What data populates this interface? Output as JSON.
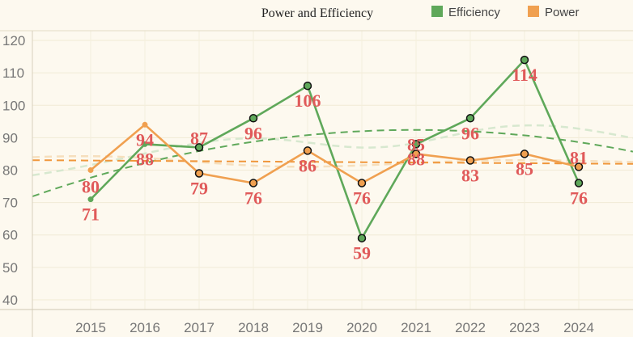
{
  "chart_data": {
    "type": "line",
    "title": "Power and Efficiency",
    "xlabel": "",
    "ylabel": "",
    "categories": [
      "2015",
      "2016",
      "2017",
      "2018",
      "2019",
      "2020",
      "2021",
      "2022",
      "2023",
      "2024"
    ],
    "series": [
      {
        "name": "Efficiency",
        "color": "#5fa85a",
        "values": [
          71,
          88,
          87,
          96,
          106,
          59,
          88,
          96,
          114,
          76
        ]
      },
      {
        "name": "Power",
        "color": "#f0a050",
        "values": [
          80,
          94,
          79,
          76,
          86,
          76,
          85,
          83,
          85,
          81
        ]
      }
    ],
    "ylim": [
      37,
      123
    ],
    "y_ticks": [
      40,
      50,
      60,
      70,
      80,
      90,
      100,
      110,
      120
    ],
    "grid": true,
    "legend_position": "top-right",
    "trend_lines": [
      "dashed quadratic fit",
      "dashed linear fit",
      "faded smooth trend"
    ]
  }
}
